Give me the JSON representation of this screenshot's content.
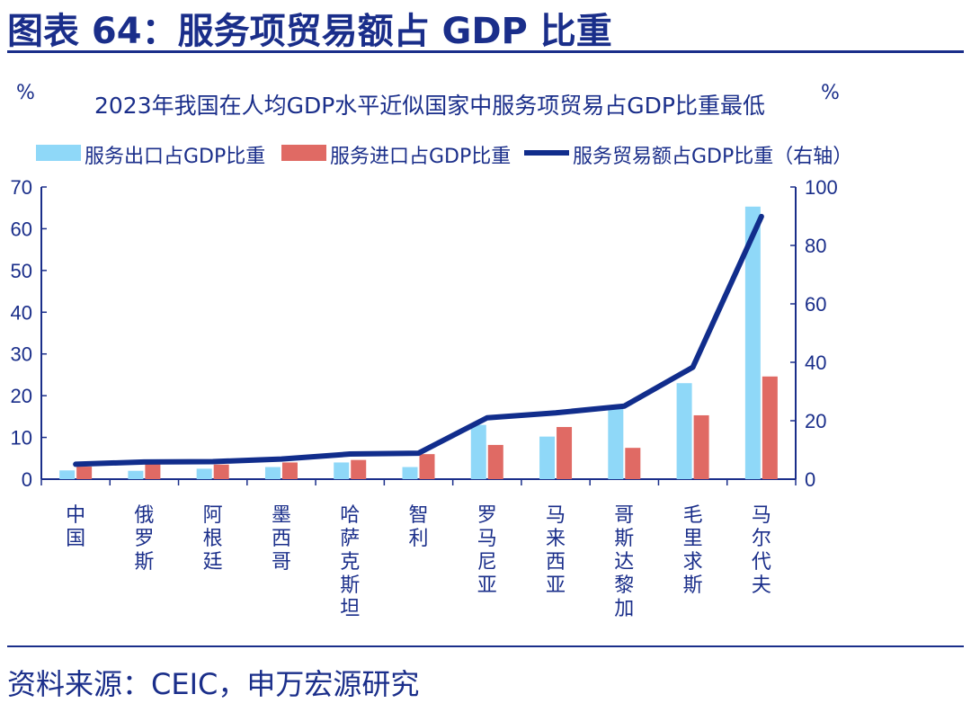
{
  "figure_title": "图表 64：服务项贸易额占 GDP 比重",
  "source": "资料来源：CEIC，申万宏源研究",
  "colors": {
    "export": "#8fd8f8",
    "import": "#e06a64",
    "total": "#112d8c",
    "text": "#1a2e8a"
  },
  "chart_data": {
    "type": "bar",
    "title": "2023年我国在人均GDP水平近似国家中服务项贸易占GDP比重最低",
    "y_left_unit": "%",
    "y_right_unit": "%",
    "ylim_left": [
      0,
      70
    ],
    "ylim_right": [
      0,
      100
    ],
    "yticks_left": [
      0,
      10,
      20,
      30,
      40,
      50,
      60,
      70
    ],
    "yticks_right": [
      0,
      20,
      40,
      60,
      80,
      100
    ],
    "legend_position": "top",
    "grid": false,
    "categories": [
      "中国",
      "俄罗斯",
      "阿根廷",
      "墨西哥",
      "哈萨克斯坦",
      "智利",
      "罗马尼亚",
      "马来西亚",
      "哥斯达黎加",
      "毛里求斯",
      "马尔代夫"
    ],
    "series": [
      {
        "name": "服务出口占GDP比重",
        "type": "bar",
        "axis": "left",
        "values": [
          2.1,
          2.0,
          2.5,
          2.9,
          4.0,
          2.9,
          13.0,
          10.2,
          17.5,
          23.0,
          65.3
        ]
      },
      {
        "name": "服务进口占GDP比重",
        "type": "bar",
        "axis": "left",
        "values": [
          3.0,
          3.9,
          3.5,
          4.0,
          4.6,
          6.0,
          8.2,
          12.5,
          7.5,
          15.3,
          24.6
        ]
      },
      {
        "name": "服务贸易额占GDP比重（右轴）",
        "type": "line",
        "axis": "right",
        "values": [
          5.1,
          5.9,
          6.0,
          6.9,
          8.6,
          8.9,
          21.0,
          22.7,
          25.0,
          38.3,
          89.9
        ]
      }
    ]
  }
}
